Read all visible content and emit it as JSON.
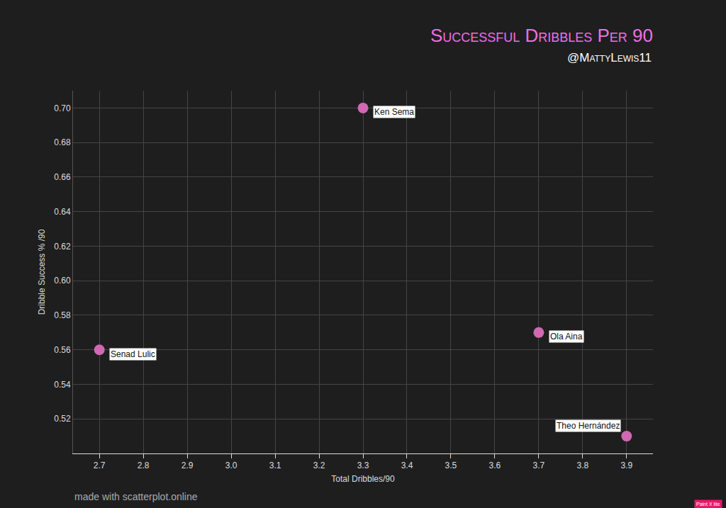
{
  "chart_data": {
    "type": "scatter",
    "title": "Successful Dribbles Per 90",
    "subtitle": "@MattyLewis11",
    "x_label": "Total Dribbles/90",
    "y_label": "Dribble Success % /90",
    "x": [
      3.3,
      3.7,
      2.7,
      3.9
    ],
    "values": [
      0.7,
      0.57,
      0.56,
      0.51
    ],
    "point_labels": [
      "Ken Sema",
      "Ola Aina",
      "Senad Lulic",
      "Theo Hernández"
    ],
    "color": "#d068b4",
    "marker": "circle",
    "xlim": [
      2.64,
      3.96
    ],
    "ylim": [
      0.5,
      0.71
    ],
    "xticks": [
      2.7,
      2.8,
      2.9,
      {
        "value": 3,
        "label": "3.0"
      },
      3.1,
      3.2,
      3.3,
      3.4,
      3.5,
      3.6,
      3.7,
      3.8,
      3.9
    ],
    "yticks": [
      0.52,
      0.54,
      0.56,
      0.58,
      {
        "value": 0.6,
        "label": "0.60"
      },
      0.62,
      0.64,
      0.66,
      0.68,
      {
        "value": 0.7,
        "label": "0.70"
      }
    ],
    "grid": true,
    "annotations": [
      "made with scatterplot.online",
      "Paint X lite"
    ]
  }
}
